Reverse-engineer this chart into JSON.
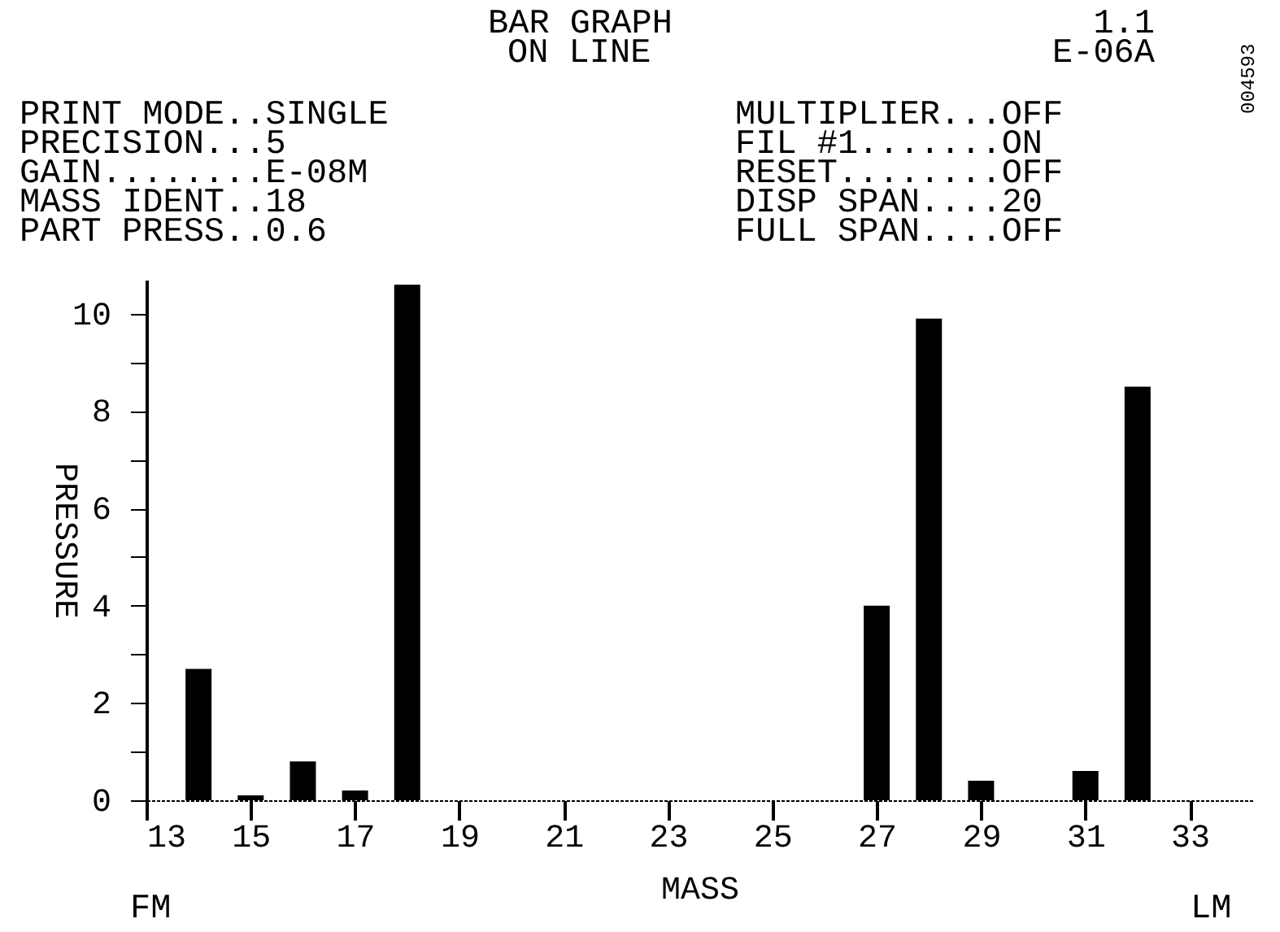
{
  "chart_data": {
    "type": "bar",
    "title": "BAR GRAPH",
    "subtitle": "ON LINE",
    "xlabel": "MASS",
    "ylabel": "PRESSURE",
    "x": [
      14,
      15,
      16,
      17,
      18,
      27,
      28,
      29,
      31,
      32
    ],
    "series": [
      {
        "color": "#000000",
        "values": [
          2.7,
          0.1,
          0.8,
          0.2,
          10.6,
          4.0,
          9.9,
          0.4,
          0.6,
          8.5
        ]
      }
    ],
    "xlim": [
      13,
      34.2
    ],
    "xticks": [
      13,
      15,
      17,
      19,
      21,
      23,
      25,
      27,
      29,
      31,
      33
    ],
    "ylim": [
      0,
      10.7
    ],
    "yticks": [
      0,
      {
        "value": 1,
        "label": null
      },
      2,
      {
        "value": 3,
        "label": null
      },
      4,
      {
        "value": 5,
        "label": null
      },
      6,
      {
        "value": 7,
        "label": null
      },
      8,
      {
        "value": 9,
        "label": null
      },
      10
    ],
    "grid": false,
    "annotations": [
      "1.1",
      "E-06A",
      "PRINT MODE..SINGLE",
      "PRECISION...5",
      "GAIN........E-08M",
      "MASS IDENT..18",
      "PART PRESS..0.6",
      "MULTIPLIER...OFF",
      "FIL #1.......ON",
      "RESET........OFF",
      "DISP SPAN....20",
      "FULL SPAN....OFF",
      "FM",
      "LM",
      "004593"
    ]
  }
}
